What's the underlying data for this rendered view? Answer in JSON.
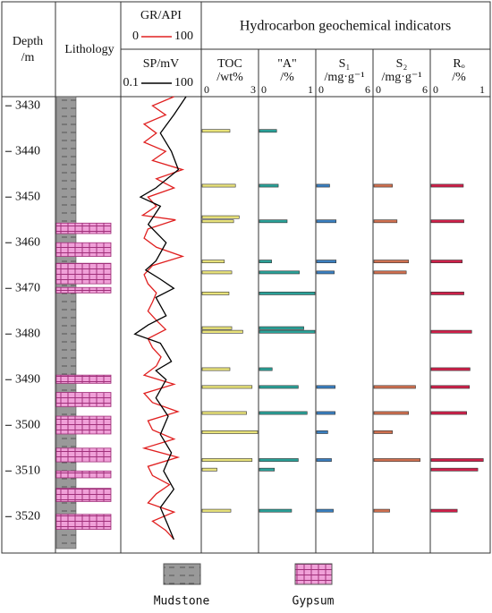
{
  "chart_data": {
    "type": "well-log",
    "depth_label": [
      "Depth",
      "/m"
    ],
    "ylim": [
      3428,
      3527
    ],
    "yticks": [
      3430,
      3440,
      3450,
      3460,
      3470,
      3480,
      3490,
      3500,
      3510,
      3520
    ],
    "lithology": {
      "title": "Lithology",
      "mudstone": [
        [
          3428,
          3527
        ]
      ],
      "gypsum": [
        [
          3455.7,
          3458
        ],
        [
          3460,
          3463
        ],
        [
          3464.5,
          3469
        ],
        [
          3469.8,
          3471
        ],
        [
          3489,
          3490.8
        ],
        [
          3492.8,
          3495.9
        ],
        [
          3498,
          3501.9
        ],
        [
          3505,
          3508
        ],
        [
          3510,
          3511.5
        ],
        [
          3513.8,
          3516.7
        ],
        [
          3519.5,
          3522.8
        ]
      ],
      "legend": [
        {
          "name": "Mudstone",
          "color": "#999999"
        },
        {
          "name": "Gypsum",
          "color": "#f0a0d8"
        }
      ]
    },
    "logs": [
      {
        "name": "GR/API",
        "color": "#e02020",
        "xlim": [
          0,
          100
        ],
        "xticks": [
          0,
          100
        ],
        "log": false,
        "depths": [
          3428,
          3430,
          3432,
          3434,
          3436,
          3438,
          3440,
          3442,
          3444,
          3446,
          3448,
          3450,
          3452,
          3454,
          3455,
          3457,
          3459,
          3461,
          3463,
          3465,
          3467,
          3469,
          3471,
          3473,
          3475,
          3477,
          3479,
          3481,
          3483,
          3485,
          3487,
          3489,
          3491,
          3493,
          3495,
          3497,
          3499,
          3501,
          3503,
          3505,
          3507,
          3509,
          3511,
          3513,
          3515,
          3517,
          3519,
          3521,
          3523,
          3525
        ],
        "values": [
          67,
          39,
          56,
          28,
          44,
          28,
          56,
          39,
          78,
          44,
          67,
          33,
          44,
          26,
          69,
          33,
          28,
          44,
          78,
          39,
          28,
          33,
          44,
          39,
          33,
          44,
          56,
          33,
          39,
          50,
          44,
          28,
          67,
          28,
          39,
          72,
          33,
          39,
          67,
          28,
          72,
          33,
          39,
          61,
          44,
          33,
          67,
          39,
          56,
          67
        ]
      },
      {
        "name": "SP/mV",
        "color": "#000000",
        "xlim": [
          0.1,
          100
        ],
        "xticks": [
          0.1,
          100
        ],
        "log": true,
        "depths": [
          3428,
          3432,
          3436,
          3440,
          3444,
          3448,
          3450,
          3452,
          3456,
          3460,
          3464,
          3466,
          3468,
          3470,
          3472,
          3476,
          3478,
          3480,
          3482,
          3486,
          3488,
          3490,
          3494,
          3498,
          3502,
          3506,
          3510,
          3514,
          3518,
          3522,
          3525
        ],
        "values": [
          30,
          10,
          3,
          8,
          15,
          2,
          0.5,
          3,
          1,
          5,
          2,
          0.8,
          3,
          10,
          2,
          5,
          1,
          0.3,
          3,
          8,
          2,
          5,
          2,
          6,
          3,
          8,
          4,
          10,
          3,
          6,
          10
        ]
      }
    ],
    "geochem": {
      "title": "Hydrocarbon geochemical indicators",
      "depths": [
        3435.5,
        3447.5,
        3454.4,
        3455.3,
        3464.1,
        3466.5,
        3471.1,
        3478.7,
        3479.5,
        3487.7,
        3491.6,
        3497.3,
        3501.5,
        3507.6,
        3509.7,
        3518.7
      ],
      "series": [
        {
          "name": "TOC",
          "unit": "/wt%",
          "color": "#e8e27a",
          "xlim": [
            0,
            3
          ],
          "xticks": [
            0,
            3
          ],
          "values": [
            1.5,
            1.8,
            2.0,
            1.7,
            1.2,
            1.6,
            1.45,
            1.6,
            2.2,
            1.5,
            2.7,
            2.4,
            3.0,
            2.7,
            0.8,
            1.55
          ]
        },
        {
          "name": "\"A\"",
          "unit": "/%",
          "color": "#2aa198",
          "xlim": [
            0,
            1
          ],
          "xticks": [
            0,
            1
          ],
          "values": [
            0.31,
            0.34,
            null,
            0.5,
            0.22,
            0.72,
            1.0,
            0.8,
            1.0,
            0.23,
            0.7,
            0.86,
            null,
            0.7,
            0.27,
            0.58
          ]
        },
        {
          "name": "S₁",
          "unit": "/mg·g⁻¹",
          "color": "#3a7fc0",
          "xlim": [
            0,
            6
          ],
          "xticks": [
            0,
            6
          ],
          "values": [
            null,
            1.4,
            null,
            2.1,
            2.1,
            1.9,
            null,
            null,
            null,
            null,
            2.0,
            2.0,
            1.2,
            1.6,
            null,
            1.8
          ]
        },
        {
          "name": "S₂",
          "unit": "/mg·g⁻¹",
          "color": "#d07050",
          "xlim": [
            0,
            6
          ],
          "xticks": [
            0,
            6
          ],
          "values": [
            null,
            2.0,
            null,
            2.5,
            3.75,
            3.5,
            null,
            null,
            null,
            null,
            4.5,
            3.75,
            2.0,
            5.0,
            null,
            1.7
          ]
        },
        {
          "name": "Rₒ",
          "unit": "/%",
          "color": "#d0204a",
          "xlim": [
            0,
            1
          ],
          "xticks": [
            0,
            1
          ],
          "values": [
            null,
            0.58,
            null,
            0.59,
            0.56,
            null,
            0.59,
            null,
            0.73,
            0.7,
            0.69,
            0.64,
            null,
            0.94,
            0.84,
            0.47
          ]
        }
      ]
    }
  }
}
